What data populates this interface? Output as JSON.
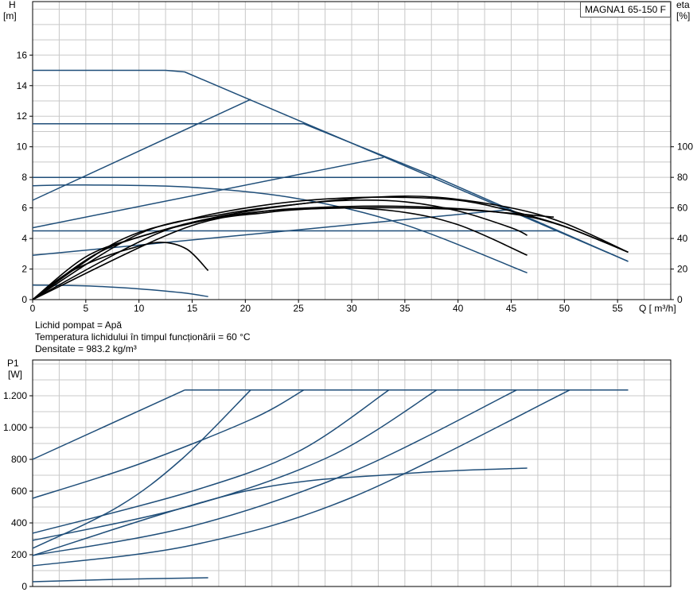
{
  "model_label": "MAGNA1 65-150 F",
  "fluid": {
    "line1": "Lichid pompat = Apă",
    "line2": " Temperatura lichidului în timpul funcționării = 60  °C",
    "line3": "Densitate = 983.2  kg/m³"
  },
  "colors": {
    "curve": "#1f4e79",
    "efficiency": "#000000",
    "grid": "#c8c8c8",
    "axis": "#000000"
  },
  "chart_data": [
    {
      "type": "line",
      "name": "head",
      "xlabel": "Q [ m³/h]",
      "ylabel_line1": "H",
      "ylabel_line2": "[m]",
      "y2label_line1": "eta",
      "y2label_line2": "[%]",
      "xlim": [
        0,
        60
      ],
      "ylim": [
        0,
        19.5
      ],
      "y2lim": [
        0,
        195
      ],
      "grid": true,
      "x_ticks": [
        0,
        5,
        10,
        15,
        20,
        25,
        30,
        35,
        40,
        45,
        50,
        55
      ],
      "y_ticks": [
        0,
        2,
        4,
        6,
        8,
        10,
        12,
        14,
        16
      ],
      "y2_ticks": [
        0,
        20,
        40,
        60,
        80,
        100
      ],
      "series": [
        {
          "kind": "head",
          "points": [
            [
              0,
              15
            ],
            [
              12.5,
              15
            ],
            [
              14.3,
              14.9
            ],
            [
              33,
              9.35
            ],
            [
              56,
              2.5
            ]
          ]
        },
        {
          "kind": "head",
          "points": [
            [
              0,
              11.5
            ],
            [
              25.5,
              11.5
            ],
            [
              38,
              8
            ],
            [
              56,
              2.5
            ]
          ]
        },
        {
          "kind": "head",
          "points": [
            [
              0,
              8
            ],
            [
              38,
              8
            ]
          ]
        },
        {
          "kind": "head",
          "points": [
            [
              0,
              4.5
            ],
            [
              49.5,
              4.5
            ]
          ]
        },
        {
          "kind": "head",
          "points": [
            [
              0,
              6.5
            ],
            [
              20.5,
              13.1
            ]
          ]
        },
        {
          "kind": "head",
          "points": [
            [
              0,
              4.7
            ],
            [
              33,
              9.3
            ]
          ]
        },
        {
          "kind": "head",
          "points": [
            [
              0,
              2.9
            ],
            [
              45,
              5.9
            ]
          ]
        },
        {
          "kind": "head",
          "points": [
            [
              0,
              7.45
            ],
            [
              5,
              7.5
            ],
            [
              15,
              7.35
            ],
            [
              25,
              6.6
            ],
            [
              35,
              4.9
            ],
            [
              46.5,
              1.75
            ]
          ]
        },
        {
          "kind": "head",
          "points": [
            [
              0,
              0.95
            ],
            [
              5,
              0.9
            ],
            [
              10,
              0.7
            ],
            [
              14,
              0.45
            ],
            [
              16.5,
              0.2
            ]
          ]
        },
        {
          "kind": "efficiency",
          "points": [
            [
              0,
              0
            ],
            [
              3,
              16
            ],
            [
              6,
              26
            ],
            [
              9,
              33
            ],
            [
              12,
              37.5
            ],
            [
              14.5,
              33
            ],
            [
              16.5,
              19
            ]
          ]
        },
        {
          "kind": "efficiency",
          "points": [
            [
              0,
              0
            ],
            [
              5,
              28
            ],
            [
              10,
              41
            ],
            [
              15,
              50
            ],
            [
              20,
              56.5
            ],
            [
              27,
              60
            ],
            [
              34,
              58
            ],
            [
              40,
              49
            ],
            [
              46.5,
              29
            ]
          ]
        },
        {
          "kind": "efficiency",
          "points": [
            [
              0,
              0
            ],
            [
              6,
              30
            ],
            [
              12,
              45
            ],
            [
              18,
              55
            ],
            [
              25,
              62.5
            ],
            [
              30,
              65
            ],
            [
              35,
              64
            ],
            [
              40,
              58
            ],
            [
              45,
              47
            ],
            [
              46.5,
              42
            ]
          ]
        },
        {
          "kind": "efficiency",
          "points": [
            [
              0,
              0
            ],
            [
              8,
              38
            ],
            [
              15,
              53
            ],
            [
              22,
              62
            ],
            [
              28,
              66
            ],
            [
              34,
              67
            ],
            [
              40,
              65
            ],
            [
              45,
              58
            ],
            [
              50,
              48
            ],
            [
              56,
              31
            ]
          ]
        },
        {
          "kind": "efficiency",
          "points": [
            [
              0,
              0
            ],
            [
              10,
              43
            ],
            [
              18,
              56
            ],
            [
              25,
              62.5
            ],
            [
              32,
              67
            ],
            [
              38,
              67
            ],
            [
              45,
              60
            ],
            [
              50,
              50
            ],
            [
              56,
              31
            ]
          ]
        },
        {
          "kind": "efficiency",
          "points": [
            [
              0,
              0
            ],
            [
              12,
              44
            ],
            [
              20,
              56
            ],
            [
              26,
              60
            ],
            [
              35,
              61
            ],
            [
              44,
              57
            ],
            [
              49.5,
              49
            ],
            [
              56,
              31
            ]
          ]
        },
        {
          "kind": "efficiency",
          "points": [
            [
              0,
              0
            ],
            [
              14,
              46
            ],
            [
              22,
              57
            ],
            [
              30,
              60
            ],
            [
              40,
              59
            ],
            [
              49,
              54
            ]
          ]
        }
      ]
    },
    {
      "type": "line",
      "name": "power",
      "ylabel_line1": "P1",
      "ylabel_line2": "[W]",
      "xlim": [
        0,
        60
      ],
      "ylim": [
        0,
        1425
      ],
      "grid": true,
      "y_ticks": [
        0,
        200,
        400,
        600,
        800,
        1000,
        1200
      ],
      "y_tick_labels": [
        "0",
        "200",
        "400",
        "600",
        "800",
        "1.000",
        "1.200"
      ],
      "series": [
        {
          "points": [
            [
              0,
              800
            ],
            [
              14.3,
              1236
            ]
          ]
        },
        {
          "points": [
            [
              14.3,
              1236
            ],
            [
              56,
              1236
            ]
          ]
        },
        {
          "points": [
            [
              0,
              555
            ],
            [
              10,
              770
            ],
            [
              20.5,
              1050
            ],
            [
              25.5,
              1236
            ]
          ]
        },
        {
          "points": [
            [
              0,
              240
            ],
            [
              8,
              500
            ],
            [
              14,
              800
            ],
            [
              20.5,
              1236
            ]
          ]
        },
        {
          "points": [
            [
              0,
              335
            ],
            [
              15,
              600
            ],
            [
              25,
              850
            ],
            [
              33.5,
              1236
            ]
          ]
        },
        {
          "points": [
            [
              0,
              290
            ],
            [
              15,
              510
            ],
            [
              28,
              820
            ],
            [
              38,
              1236
            ]
          ]
        },
        {
          "points": [
            [
              0,
              195
            ],
            [
              15,
              380
            ],
            [
              30,
              720
            ],
            [
              45.5,
              1236
            ]
          ]
        },
        {
          "points": [
            [
              0,
              130
            ],
            [
              15,
              260
            ],
            [
              30,
              560
            ],
            [
              50.5,
              1236
            ]
          ]
        },
        {
          "points": [
            [
              0,
              195
            ],
            [
              20,
              600
            ],
            [
              35,
              710
            ],
            [
              46.5,
              745
            ]
          ]
        },
        {
          "points": [
            [
              0,
              30
            ],
            [
              8,
              45
            ],
            [
              16.5,
              55
            ]
          ]
        }
      ]
    }
  ]
}
